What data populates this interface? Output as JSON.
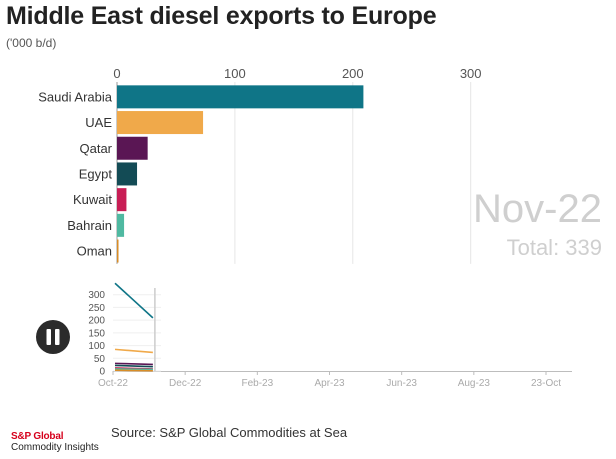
{
  "header": {
    "title": "Middle East diesel exports to Europe",
    "subtitle": "('000 b/d)"
  },
  "overlay": {
    "period": "Nov-22",
    "total_label": "Total: 339"
  },
  "footer": {
    "source": "Source: S&P Global Commodities at Sea",
    "logo_brand": "S&P Global",
    "logo_sub": "Commodity Insights"
  },
  "controls": {
    "play_state": "pause",
    "icon": "pause-icon"
  },
  "chart_data": [
    {
      "type": "bar",
      "orientation": "horizontal",
      "categories": [
        "Saudi Arabia",
        "UAE",
        "Qatar",
        "Egypt",
        "Kuwait",
        "Bahrain",
        "Oman"
      ],
      "values": [
        209,
        73,
        26,
        17,
        8,
        6,
        1
      ],
      "colors": [
        "#0f7587",
        "#f0a94a",
        "#5a1654",
        "#134b55",
        "#c81e55",
        "#4fb9a1",
        "#d98d27"
      ],
      "xlim": [
        0,
        380
      ],
      "xticks": [
        0,
        100,
        200,
        300
      ],
      "grid": true
    },
    {
      "type": "line",
      "yticks": [
        0,
        50,
        100,
        150,
        200,
        250,
        300
      ],
      "ylim": [
        0,
        350
      ],
      "xticks": [
        "Oct-22",
        "Dec-22",
        "Feb-23",
        "Apr-23",
        "Jun-23",
        "Aug-23",
        "23-Oct"
      ],
      "x": [
        "Oct-22",
        "Nov-22"
      ],
      "series": [
        {
          "color": "#0f7587",
          "values": [
            345,
            209
          ]
        },
        {
          "color": "#f0a94a",
          "values": [
            85,
            73
          ]
        },
        {
          "color": "#5a1654",
          "values": [
            30,
            26
          ]
        },
        {
          "color": "#134b55",
          "values": [
            22,
            17
          ]
        },
        {
          "color": "#c81e55",
          "values": [
            12,
            8
          ]
        },
        {
          "color": "#4fb9a1",
          "values": [
            8,
            6
          ]
        },
        {
          "color": "#d98d27",
          "values": [
            3,
            1
          ]
        }
      ]
    }
  ]
}
